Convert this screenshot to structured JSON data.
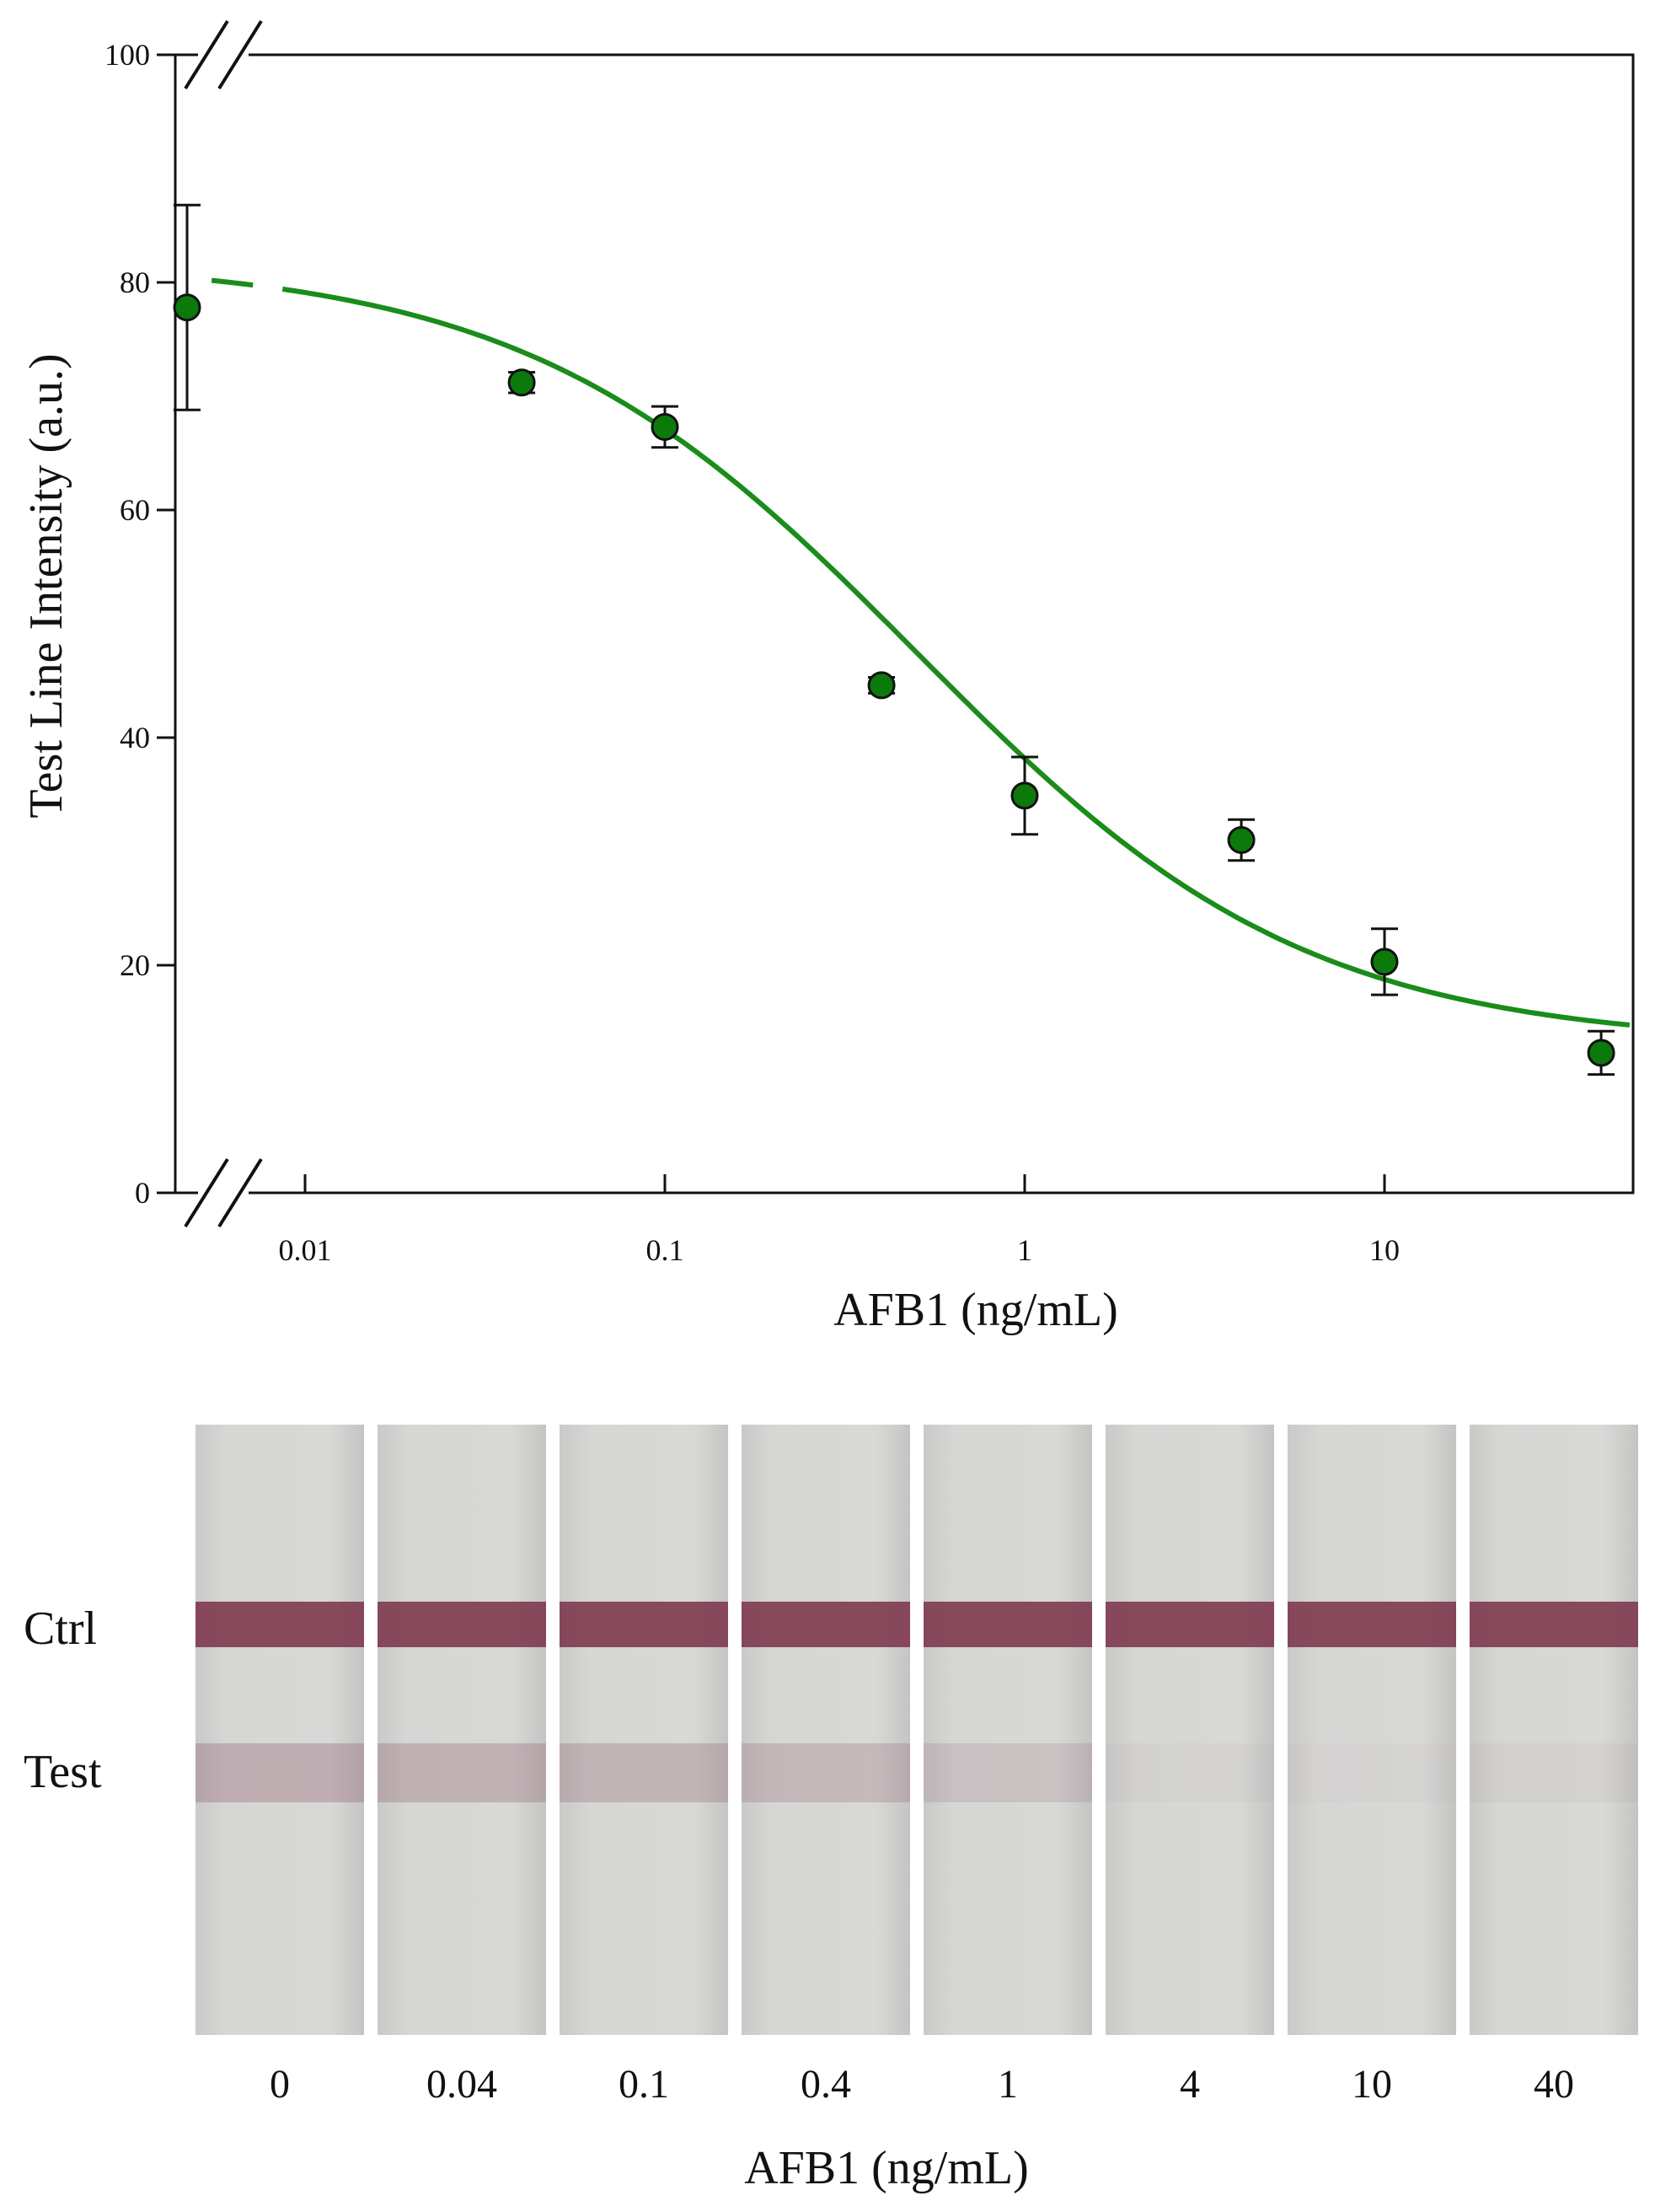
{
  "chart_data": {
    "type": "scatter",
    "xlabel": "AFB1 (ng/mL)",
    "ylabel": "Test Line Intensity (a.u.)",
    "x_scale": "log",
    "x_ticks": [
      "0.01",
      "0.1",
      "1",
      "10"
    ],
    "y_ticks": [
      "0",
      "20",
      "40",
      "60",
      "80",
      "100"
    ],
    "ylim": [
      0,
      100
    ],
    "axis_breaks": true,
    "series": [
      {
        "kind": "points",
        "x": [
          "0",
          "0.04",
          "0.1",
          "0.4",
          "1",
          "4",
          "10",
          "40"
        ],
        "y": [
          77.8,
          71.2,
          67.3,
          44.6,
          34.9,
          31.0,
          20.3,
          12.3
        ],
        "error": [
          9.0,
          0.9,
          1.8,
          0.7,
          3.4,
          1.8,
          2.9,
          1.9
        ],
        "color": "#0b7a0b"
      },
      {
        "kind": "fit-curve",
        "model": "4PL",
        "top": 82,
        "bottom": 13,
        "ec50": 0.5,
        "hill": 0.8,
        "color": "#1a8c1a"
      }
    ]
  },
  "strips": {
    "row_labels": [
      "Ctrl",
      "Test"
    ],
    "concentrations": [
      "0",
      "0.04",
      "0.1",
      "0.4",
      "1",
      "4",
      "10",
      "40"
    ],
    "test_line_intensity": [
      0.65,
      0.6,
      0.55,
      0.5,
      0.35,
      0.08,
      0.05,
      0.1
    ],
    "ctrl_color": "#7a3048",
    "test_color": "#8a5a6a",
    "xlabel": "AFB1 (ng/mL)"
  }
}
